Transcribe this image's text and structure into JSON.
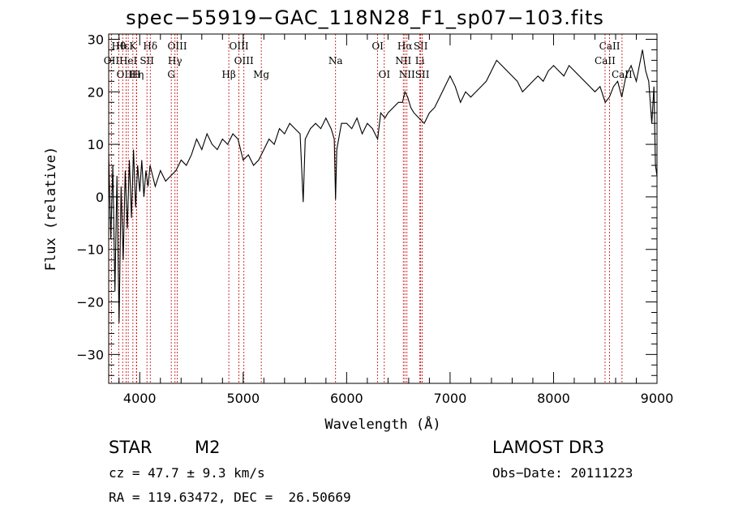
{
  "figure": {
    "title": "spec−55919−GAC_118N28_F1_sp07−103.fits",
    "object_class": "STAR",
    "subclass": "M2",
    "survey": "LAMOST DR3",
    "redshift_line": "cz = 47.7 ± 9.3 km/s",
    "obs_date_line": "Obs−Date: 20111223",
    "coords_line": "RA = 119.63472, DEC =  26.50669"
  },
  "chart_data": {
    "type": "line",
    "title": "spec−55919−GAC_118N28_F1_sp07−103.fits",
    "xlabel": "Wavelength (Å)",
    "ylabel": "Flux (relative)",
    "xlim": [
      3700,
      9000
    ],
    "ylim": [
      -35.5,
      31
    ],
    "x_ticks": [
      4000,
      5000,
      6000,
      7000,
      8000,
      9000
    ],
    "y_ticks": [
      -30,
      -20,
      -10,
      0,
      10,
      20,
      30
    ],
    "grid": false,
    "series": [
      {
        "name": "flux",
        "color": "#000000",
        "points": [
          [
            3700,
            8
          ],
          [
            3720,
            -8
          ],
          [
            3740,
            6
          ],
          [
            3760,
            -18
          ],
          [
            3780,
            4
          ],
          [
            3800,
            -24
          ],
          [
            3820,
            2
          ],
          [
            3840,
            -12
          ],
          [
            3860,
            5
          ],
          [
            3880,
            -6
          ],
          [
            3900,
            7
          ],
          [
            3920,
            -4
          ],
          [
            3940,
            9
          ],
          [
            3960,
            -2
          ],
          [
            3980,
            6
          ],
          [
            4000,
            1
          ],
          [
            4020,
            7
          ],
          [
            4040,
            0
          ],
          [
            4060,
            5
          ],
          [
            4080,
            2
          ],
          [
            4100,
            6
          ],
          [
            4150,
            2
          ],
          [
            4200,
            5
          ],
          [
            4250,
            3
          ],
          [
            4300,
            4
          ],
          [
            4350,
            5
          ],
          [
            4400,
            7
          ],
          [
            4450,
            6
          ],
          [
            4500,
            8
          ],
          [
            4550,
            11
          ],
          [
            4600,
            9
          ],
          [
            4650,
            12
          ],
          [
            4700,
            10
          ],
          [
            4750,
            9
          ],
          [
            4800,
            11
          ],
          [
            4850,
            10
          ],
          [
            4900,
            12
          ],
          [
            4950,
            11
          ],
          [
            5000,
            7
          ],
          [
            5050,
            8
          ],
          [
            5100,
            6
          ],
          [
            5150,
            7
          ],
          [
            5200,
            9
          ],
          [
            5250,
            11
          ],
          [
            5300,
            10
          ],
          [
            5350,
            13
          ],
          [
            5400,
            12
          ],
          [
            5450,
            14
          ],
          [
            5500,
            13
          ],
          [
            5550,
            12
          ],
          [
            5580,
            -1
          ],
          [
            5600,
            11
          ],
          [
            5650,
            13
          ],
          [
            5700,
            14
          ],
          [
            5750,
            13
          ],
          [
            5800,
            15
          ],
          [
            5850,
            13
          ],
          [
            5880,
            11
          ],
          [
            5893,
            -0.5
          ],
          [
            5905,
            9
          ],
          [
            5950,
            14
          ],
          [
            6000,
            14
          ],
          [
            6050,
            13
          ],
          [
            6100,
            15
          ],
          [
            6150,
            12
          ],
          [
            6200,
            14
          ],
          [
            6250,
            13
          ],
          [
            6300,
            11
          ],
          [
            6330,
            16
          ],
          [
            6370,
            15
          ],
          [
            6400,
            16
          ],
          [
            6450,
            17
          ],
          [
            6500,
            18
          ],
          [
            6540,
            18
          ],
          [
            6563,
            20
          ],
          [
            6590,
            19
          ],
          [
            6620,
            17
          ],
          [
            6650,
            16
          ],
          [
            6700,
            15
          ],
          [
            6750,
            14
          ],
          [
            6800,
            16
          ],
          [
            6850,
            17
          ],
          [
            6900,
            19
          ],
          [
            6950,
            21
          ],
          [
            7000,
            23
          ],
          [
            7050,
            21
          ],
          [
            7100,
            18
          ],
          [
            7150,
            20
          ],
          [
            7200,
            19
          ],
          [
            7250,
            20
          ],
          [
            7300,
            21
          ],
          [
            7350,
            22
          ],
          [
            7400,
            24
          ],
          [
            7450,
            26
          ],
          [
            7500,
            25
          ],
          [
            7550,
            24
          ],
          [
            7600,
            23
          ],
          [
            7650,
            22
          ],
          [
            7700,
            20
          ],
          [
            7750,
            21
          ],
          [
            7800,
            22
          ],
          [
            7850,
            23
          ],
          [
            7900,
            22
          ],
          [
            7950,
            24
          ],
          [
            8000,
            25
          ],
          [
            8050,
            24
          ],
          [
            8100,
            23
          ],
          [
            8150,
            25
          ],
          [
            8200,
            24
          ],
          [
            8250,
            23
          ],
          [
            8300,
            22
          ],
          [
            8350,
            21
          ],
          [
            8400,
            20
          ],
          [
            8450,
            21
          ],
          [
            8500,
            18
          ],
          [
            8540,
            19
          ],
          [
            8580,
            21
          ],
          [
            8620,
            22
          ],
          [
            8660,
            19
          ],
          [
            8700,
            23
          ],
          [
            8750,
            25
          ],
          [
            8800,
            22
          ],
          [
            8830,
            25
          ],
          [
            8860,
            28
          ],
          [
            8890,
            24
          ],
          [
            8920,
            22
          ],
          [
            8950,
            14
          ],
          [
            8970,
            21
          ],
          [
            8985,
            6
          ],
          [
            9000,
            4
          ]
        ]
      }
    ],
    "line_markers": [
      {
        "label": "Hε",
        "x": 3835,
        "row": 0
      },
      {
        "label": "OII",
        "x": 3727,
        "row": 1
      },
      {
        "label": "OIII",
        "x": 3869,
        "row": 2
      },
      {
        "label": "Hθ",
        "x": 3797,
        "row": 0
      },
      {
        "label": "K",
        "x": 3934,
        "row": 0
      },
      {
        "label": "Hδ",
        "x": 4102,
        "row": 0
      },
      {
        "label": "HeI",
        "x": 3889,
        "row": 1
      },
      {
        "label": "SII",
        "x": 4070,
        "row": 1
      },
      {
        "label": "Hη",
        "x": 3970,
        "row": 2
      },
      {
        "label": "H",
        "x": 3968,
        "row": 2
      },
      {
        "label": "OIII",
        "x": 4363,
        "row": 0
      },
      {
        "label": "Hγ",
        "x": 4341,
        "row": 1
      },
      {
        "label": "G",
        "x": 4305,
        "row": 2
      },
      {
        "label": "OIII",
        "x": 4959,
        "row": 0
      },
      {
        "label": "OIII",
        "x": 5007,
        "row": 1
      },
      {
        "label": "Hβ",
        "x": 4861,
        "row": 2
      },
      {
        "label": "Mg",
        "x": 5175,
        "row": 2
      },
      {
        "label": "Na",
        "x": 5893,
        "row": 1
      },
      {
        "label": "OI",
        "x": 6300,
        "row": 0
      },
      {
        "label": "OI",
        "x": 6364,
        "row": 2
      },
      {
        "label": "Hα",
        "x": 6563,
        "row": 0
      },
      {
        "label": "SII",
        "x": 6716,
        "row": 0
      },
      {
        "label": "NII",
        "x": 6548,
        "row": 1
      },
      {
        "label": "Li",
        "x": 6708,
        "row": 1
      },
      {
        "label": "NII",
        "x": 6583,
        "row": 2
      },
      {
        "label": "SII",
        "x": 6731,
        "row": 2
      },
      {
        "label": "CaII",
        "x": 8542,
        "row": 0
      },
      {
        "label": "CaII",
        "x": 8498,
        "row": 1
      },
      {
        "label": "CaII",
        "x": 8662,
        "row": 2
      }
    ]
  }
}
